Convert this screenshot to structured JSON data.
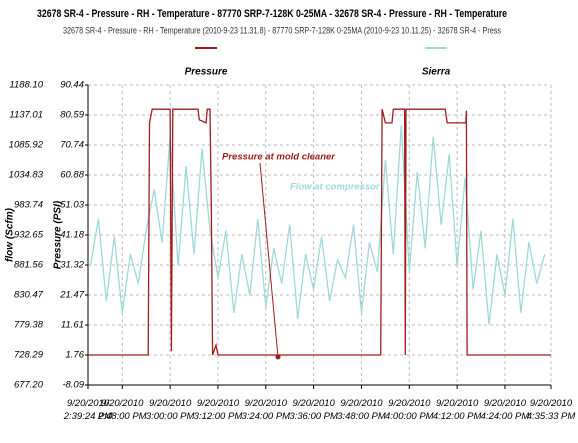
{
  "chart_data": {
    "type": "line",
    "title": "32678 SR-4 - Pressure - RH - Temperature - 87770 SRP-7-128K 0-25MA - 32678 SR-4 - Pressure - RH - Temperature",
    "subtitle": "32678 SR-4 - Pressure - RH - Temperature (2010-9-23 11.31.8) - 87770 SRP-7-128K 0-25MA (2010-9-23 10.11.25) - 32678 SR-4 - Press",
    "y_label": "flow (Scfm)",
    "y2_label": "Pressure (PSI)",
    "grid": true,
    "xlim": [
      "2010-09-20T14:39:24",
      "2010-09-20T16:35:33"
    ],
    "xticks": [
      {
        "value": "2010-09-20T14:39:24",
        "label": "9/20/2010 2:39:24 PM"
      },
      {
        "value": "2010-09-20T14:48:00",
        "label": "9/20/2010 2:48:00 PM"
      },
      {
        "value": "2010-09-20T15:00:00",
        "label": "9/20/2010 3:00:00 PM"
      },
      {
        "value": "2010-09-20T15:12:00",
        "label": "9/20/2010 3:12:00 PM"
      },
      {
        "value": "2010-09-20T15:24:00",
        "label": "9/20/2010 3:24:00 PM"
      },
      {
        "value": "2010-09-20T15:36:00",
        "label": "9/20/2010 3:36:00 PM"
      },
      {
        "value": "2010-09-20T15:48:00",
        "label": "9/20/2010 3:48:00 PM"
      },
      {
        "value": "2010-09-20T16:00:00",
        "label": "9/20/2010 4:00:00 PM"
      },
      {
        "value": "2010-09-20T16:12:00",
        "label": "9/20/2010 4:12:00 PM"
      },
      {
        "value": "2010-09-20T16:24:00",
        "label": "9/20/2010 4:24:00 PM"
      },
      {
        "value": "2010-09-20T16:35:33",
        "label": "9/20/2010 4:35:33 PM"
      }
    ],
    "ylim": [
      677.2,
      1188.1
    ],
    "yticks": [
      {
        "value": 677.2,
        "label": "677.20"
      },
      728.29,
      779.38,
      830.47,
      881.56,
      932.65,
      983.74,
      1034.83,
      1085.92,
      1137.01,
      {
        "value": 1188.1,
        "label": "1188.10"
      }
    ],
    "y2lim": [
      -8.09,
      90.44
    ],
    "y2ticks": [
      -8.09,
      1.76,
      11.61,
      21.47,
      31.32,
      41.18,
      51.03,
      60.88,
      70.74,
      80.59,
      90.44
    ],
    "series": [
      {
        "name": "Pressure",
        "color": "#a01c1c",
        "axis": "y2",
        "x": [
          "2010-09-20T14:39:24",
          "2010-09-20T14:54:30",
          "2010-09-20T14:54:50",
          "2010-09-20T14:55:30",
          "2010-09-20T15:00:00",
          "2010-09-20T15:00:20",
          "2010-09-20T15:00:40",
          "2010-09-20T15:07:00",
          "2010-09-20T15:07:20",
          "2010-09-20T15:09:00",
          "2010-09-20T15:09:20",
          "2010-09-20T15:10:00",
          "2010-09-20T15:10:20",
          "2010-09-20T15:10:40",
          "2010-09-20T15:11:30",
          "2010-09-20T15:12:00",
          "2010-09-20T15:52:50",
          "2010-09-20T15:53:10",
          "2010-09-20T15:54:00",
          "2010-09-20T15:55:40",
          "2010-09-20T15:56:00",
          "2010-09-20T15:58:50",
          "2010-09-20T15:59:00",
          "2010-09-20T15:59:10",
          "2010-09-20T16:09:00",
          "2010-09-20T16:09:30",
          "2010-09-20T16:14:10",
          "2010-09-20T16:14:20",
          "2010-09-20T16:14:30",
          "2010-09-20T16:35:33"
        ],
        "values": [
          1.76,
          1.76,
          78,
          82.5,
          82.5,
          3,
          82.5,
          82.5,
          79,
          78,
          82.5,
          82.5,
          50,
          1.76,
          5,
          1.76,
          1.76,
          82.5,
          78,
          78,
          82.5,
          82.5,
          1.76,
          82.5,
          82.5,
          78,
          78,
          82,
          1.76,
          1.76
        ]
      },
      {
        "name": "Sierra",
        "color": "#9fd8dc",
        "x": [
          "2010-09-20T14:40:00",
          "2010-09-20T14:42:00",
          "2010-09-20T14:44:00",
          "2010-09-20T14:46:00",
          "2010-09-20T14:48:00",
          "2010-09-20T14:50:00",
          "2010-09-20T14:52:00",
          "2010-09-20T14:54:00",
          "2010-09-20T14:56:00",
          "2010-09-20T14:58:00",
          "2010-09-20T15:00:00",
          "2010-09-20T15:02:00",
          "2010-09-20T15:04:00",
          "2010-09-20T15:06:00",
          "2010-09-20T15:08:00",
          "2010-09-20T15:10:00",
          "2010-09-20T15:12:00",
          "2010-09-20T15:14:00",
          "2010-09-20T15:16:00",
          "2010-09-20T15:18:00",
          "2010-09-20T15:20:00",
          "2010-09-20T15:22:00",
          "2010-09-20T15:24:00",
          "2010-09-20T15:26:00",
          "2010-09-20T15:28:00",
          "2010-09-20T15:30:00",
          "2010-09-20T15:32:00",
          "2010-09-20T15:34:00",
          "2010-09-20T15:36:00",
          "2010-09-20T15:38:00",
          "2010-09-20T15:40:00",
          "2010-09-20T15:42:00",
          "2010-09-20T15:44:00",
          "2010-09-20T15:46:00",
          "2010-09-20T15:48:00",
          "2010-09-20T15:50:00",
          "2010-09-20T15:52:00",
          "2010-09-20T15:54:00",
          "2010-09-20T15:56:00",
          "2010-09-20T15:58:00",
          "2010-09-20T16:00:00",
          "2010-09-20T16:02:00",
          "2010-09-20T16:04:00",
          "2010-09-20T16:06:00",
          "2010-09-20T16:08:00",
          "2010-09-20T16:10:00",
          "2010-09-20T16:12:00",
          "2010-09-20T16:14:00",
          "2010-09-20T16:16:00",
          "2010-09-20T16:18:00",
          "2010-09-20T16:20:00",
          "2010-09-20T16:22:00",
          "2010-09-20T16:24:00",
          "2010-09-20T16:26:00",
          "2010-09-20T16:28:00",
          "2010-09-20T16:30:00",
          "2010-09-20T16:32:00",
          "2010-09-20T16:34:00"
        ],
        "values": [
          880,
          960,
          820,
          930,
          800,
          900,
          850,
          940,
          1010,
          920,
          1100,
          880,
          1050,
          900,
          1080,
          940,
          860,
          940,
          800,
          900,
          830,
          960,
          810,
          910,
          850,
          950,
          790,
          900,
          840,
          930,
          820,
          890,
          860,
          950,
          800,
          920,
          870,
          1060,
          900,
          1120,
          870,
          1040,
          910,
          1100,
          950,
          1070,
          880,
          1030,
          840,
          940,
          780,
          900,
          830,
          960,
          800,
          920,
          850,
          900
        ]
      }
    ],
    "annotations": [
      {
        "text": "Pressure at mold cleaner",
        "color": "#a01c1c"
      },
      {
        "text": "Flow at compressor",
        "color": "#9fd8dc"
      }
    ]
  }
}
